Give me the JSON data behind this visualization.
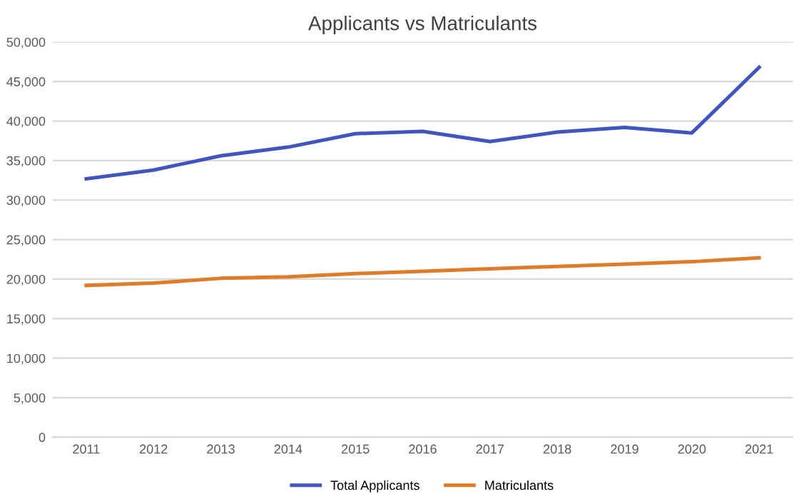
{
  "chart_data": {
    "type": "line",
    "title": "Applicants vs Matriculants",
    "categories": [
      "2011",
      "2012",
      "2013",
      "2014",
      "2015",
      "2016",
      "2017",
      "2018",
      "2019",
      "2020",
      "2021"
    ],
    "series": [
      {
        "name": "Total Applicants",
        "color": "#4055bd",
        "values": [
          32700,
          33800,
          35600,
          36700,
          38400,
          38700,
          37400,
          38600,
          39200,
          38500,
          46800
        ]
      },
      {
        "name": "Matriculants",
        "color": "#e07b2a",
        "values": [
          19200,
          19500,
          20100,
          20300,
          20700,
          21000,
          21300,
          21600,
          21900,
          22200,
          22700
        ]
      }
    ],
    "ylim": [
      0,
      50000
    ],
    "yticks": [
      0,
      {
        "value": 5000,
        "label": "5,000"
      },
      {
        "value": 10000,
        "label": "10,000"
      },
      {
        "value": 15000,
        "label": "15,000"
      },
      {
        "value": 20000,
        "label": "20,000"
      },
      {
        "value": 25000,
        "label": "25,000"
      },
      {
        "value": 30000,
        "label": "30,000"
      },
      {
        "value": 35000,
        "label": "35,000"
      },
      {
        "value": 40000,
        "label": "40,000"
      },
      {
        "value": 45000,
        "label": "45,000"
      },
      {
        "value": 50000,
        "label": "50,000"
      }
    ],
    "grid": "y",
    "legend": "bottom",
    "marker": "none",
    "line_style": "solid"
  }
}
